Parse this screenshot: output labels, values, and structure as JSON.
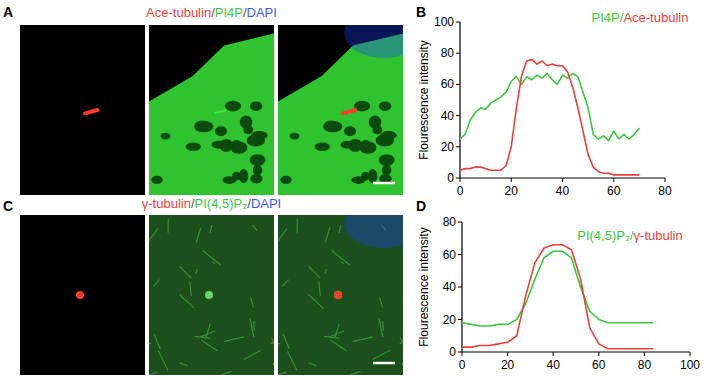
{
  "chart_data": [
    {
      "type": "line",
      "letter": "B",
      "title": [
        {
          "text": "PI4P/",
          "color": "#3ec63e"
        },
        {
          "text": "Ace-tubulin",
          "color": "#e8413c"
        }
      ],
      "y_label": "Flourescence intensity",
      "x": [
        0,
        2,
        4,
        6,
        8,
        10,
        12,
        14,
        16,
        18,
        20,
        22,
        24,
        26,
        28,
        30,
        32,
        34,
        36,
        38,
        40,
        42,
        44,
        46,
        48,
        50,
        52,
        54,
        56,
        58,
        60,
        62,
        64,
        66,
        68,
        70
      ],
      "series": [
        {
          "name": "PI4P",
          "color": "#3ec63e",
          "values": [
            25,
            28,
            37,
            42,
            45,
            44,
            48,
            50,
            52,
            55,
            62,
            65,
            60,
            65,
            63,
            66,
            64,
            67,
            63,
            60,
            66,
            64,
            67,
            65,
            55,
            45,
            28,
            25,
            27,
            24,
            30,
            25,
            28,
            25,
            28,
            32
          ]
        },
        {
          "name": "Ace-tubulin",
          "color": "#e8413c",
          "values": [
            5,
            6,
            6,
            7,
            7,
            6,
            5,
            5,
            5,
            8,
            20,
            45,
            65,
            75,
            76,
            73,
            75,
            72,
            73,
            72,
            72,
            68,
            58,
            45,
            30,
            15,
            7,
            4,
            3,
            3,
            2,
            2,
            2,
            2,
            2,
            2
          ]
        }
      ],
      "xlim": [
        0,
        80
      ],
      "xticks": [
        0,
        20,
        40,
        60,
        80
      ],
      "ylim": [
        0,
        100
      ],
      "yticks": [
        0,
        20,
        40,
        60,
        80,
        100
      ]
    },
    {
      "type": "line",
      "letter": "D",
      "title": [
        {
          "text": "PI(4,5)P₂/",
          "color": "#3ec63e"
        },
        {
          "text": "γ-tubulin",
          "color": "#e8413c"
        }
      ],
      "y_label": "Flourescence intensity",
      "x": [
        0,
        4,
        8,
        12,
        16,
        20,
        24,
        28,
        32,
        36,
        40,
        44,
        48,
        52,
        56,
        60,
        64,
        68,
        72,
        76,
        80,
        84
      ],
      "series": [
        {
          "name": "PI(4,5)P₂",
          "color": "#3ec63e",
          "values": [
            18,
            17,
            16,
            16,
            17,
            17,
            20,
            30,
            45,
            58,
            62,
            62,
            58,
            40,
            25,
            20,
            18,
            18,
            18,
            18,
            18,
            18
          ]
        },
        {
          "name": "γ-tubulin",
          "color": "#e8413c",
          "values": [
            3,
            3,
            4,
            4,
            5,
            6,
            10,
            35,
            55,
            64,
            66,
            66,
            63,
            45,
            15,
            5,
            2,
            2,
            2,
            2,
            2,
            2
          ]
        }
      ],
      "xlim": [
        0,
        100
      ],
      "xticks": [
        0,
        20,
        40,
        60,
        80,
        100
      ],
      "ylim": [
        0,
        80
      ],
      "yticks": [
        0,
        20,
        40,
        60,
        80
      ]
    }
  ],
  "images": [
    {
      "letter": "A",
      "label": [
        {
          "text": "Ace-tubulin",
          "color": "#e8413c"
        },
        {
          "text": "/",
          "color": "#ffffff"
        },
        {
          "text": "PI4P",
          "color": "#3ec63e"
        },
        {
          "text": "/",
          "color": "#ffffff"
        },
        {
          "text": "DAPI",
          "color": "#3a5cff"
        }
      ]
    },
    {
      "letter": "C",
      "label": [
        {
          "text": "γ-tubulin",
          "color": "#e8413c"
        },
        {
          "text": "/",
          "color": "#ffffff"
        },
        {
          "text": "PI(4,5)P₂",
          "color": "#3ec63e"
        },
        {
          "text": "/",
          "color": "#ffffff"
        },
        {
          "text": "DAPI",
          "color": "#3a5cff"
        }
      ]
    }
  ]
}
